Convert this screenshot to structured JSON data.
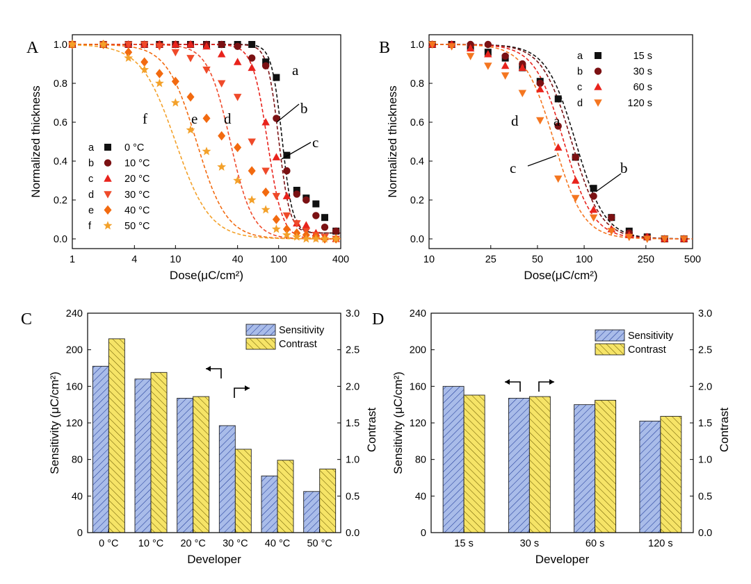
{
  "chart_data": [
    {
      "panel": "A",
      "type": "scatter",
      "xscale": "log",
      "xlim": [
        1,
        400
      ],
      "ylim": [
        -0.05,
        1.05
      ],
      "xticks": [
        "1",
        "4",
        "10",
        "40",
        "100",
        "400"
      ],
      "xtick_values": [
        1,
        4,
        10,
        40,
        100,
        400
      ],
      "yticks": [
        "0.0",
        "0.2",
        "0.4",
        "0.6",
        "0.8",
        "1.0"
      ],
      "xlabel": "Dose(μC/cm²)",
      "ylabel": "Normalized thickness",
      "legend_position": "bottom-left",
      "series": [
        {
          "name": "0 °C",
          "letter": "a",
          "color": "#111111",
          "marker": "square",
          "x": [
            1,
            2,
            3.5,
            5,
            7,
            10,
            14,
            20,
            28,
            40,
            55,
            75,
            95,
            120,
            150,
            185,
            230,
            280,
            360
          ],
          "y": [
            1.0,
            1.0,
            1.0,
            1.0,
            1.0,
            1.0,
            1.0,
            1.0,
            1.0,
            1.0,
            1.0,
            0.91,
            0.83,
            0.43,
            0.25,
            0.21,
            0.18,
            0.11,
            0.04
          ],
          "fit_mid": 108,
          "fit_k": 8.5,
          "fit_floor": 0.03
        },
        {
          "name": "10 °C",
          "letter": "b",
          "color": "#7b1113",
          "marker": "circle",
          "x": [
            1,
            2,
            3.5,
            5,
            7,
            10,
            14,
            20,
            28,
            40,
            55,
            75,
            95,
            120,
            150,
            185,
            230,
            280,
            360
          ],
          "y": [
            1.0,
            1.0,
            1.0,
            1.0,
            1.0,
            1.0,
            1.0,
            1.0,
            1.0,
            0.99,
            0.93,
            0.89,
            0.62,
            0.35,
            0.23,
            0.2,
            0.12,
            0.06,
            0.04
          ],
          "fit_mid": 100,
          "fit_k": 8.0,
          "fit_floor": 0.03
        },
        {
          "name": "20 °C",
          "letter": "c",
          "color": "#e8231c",
          "marker": "triangle-up",
          "x": [
            1,
            2,
            3.5,
            5,
            7,
            10,
            14,
            20,
            28,
            40,
            55,
            75,
            95,
            120,
            150,
            185,
            230,
            280,
            360
          ],
          "y": [
            1.0,
            1.0,
            1.0,
            1.0,
            1.0,
            1.0,
            1.0,
            0.99,
            0.95,
            0.91,
            0.88,
            0.6,
            0.42,
            0.22,
            0.08,
            0.07,
            0.03,
            0.01,
            0.0
          ],
          "fit_mid": 78,
          "fit_k": 6.0,
          "fit_floor": 0.0
        },
        {
          "name": "30 °C",
          "letter": "d",
          "color": "#ef4a2a",
          "marker": "triangle-down",
          "x": [
            1,
            2,
            3.5,
            5,
            7,
            10,
            14,
            20,
            28,
            40,
            55,
            75,
            95,
            120,
            150,
            185,
            230,
            280,
            360
          ],
          "y": [
            1.0,
            1.0,
            1.0,
            1.0,
            0.99,
            0.96,
            0.93,
            0.87,
            0.8,
            0.73,
            0.5,
            0.35,
            0.22,
            0.12,
            0.08,
            0.04,
            0.02,
            0.01,
            0.0
          ],
          "fit_mid": 34,
          "fit_k": 4.0,
          "fit_floor": 0.0
        },
        {
          "name": "40 °C",
          "letter": "e",
          "color": "#f26a10",
          "marker": "diamond",
          "x": [
            1,
            2,
            3.5,
            5,
            7,
            10,
            14,
            20,
            28,
            40,
            55,
            75,
            95,
            120,
            150,
            185,
            230,
            280,
            360
          ],
          "y": [
            1.0,
            1.0,
            0.96,
            0.91,
            0.85,
            0.81,
            0.73,
            0.62,
            0.53,
            0.47,
            0.35,
            0.24,
            0.1,
            0.05,
            0.03,
            0.02,
            0.01,
            0.0,
            0.0
          ],
          "fit_mid": 16,
          "fit_k": 3.0,
          "fit_floor": 0.0
        },
        {
          "name": "50 °C",
          "letter": "f",
          "color": "#f3a12a",
          "marker": "star",
          "x": [
            1,
            2,
            3.5,
            5,
            7,
            10,
            14,
            20,
            28,
            40,
            55,
            75,
            95,
            120,
            150,
            185,
            230,
            280,
            360
          ],
          "y": [
            1.0,
            1.0,
            0.93,
            0.87,
            0.8,
            0.7,
            0.56,
            0.45,
            0.37,
            0.3,
            0.2,
            0.15,
            0.05,
            0.02,
            0.01,
            0.0,
            0.0,
            0.0,
            0.0
          ],
          "fit_mid": 10,
          "fit_k": 2.6,
          "fit_floor": 0.0
        }
      ],
      "annotations": [
        "a",
        "b",
        "c",
        "d",
        "e",
        "f"
      ]
    },
    {
      "panel": "B",
      "type": "scatter",
      "xscale": "log",
      "xlim": [
        10,
        500
      ],
      "ylim": [
        -0.05,
        1.05
      ],
      "xticks": [
        "10",
        "25",
        "50",
        "100",
        "250",
        "500"
      ],
      "xtick_values": [
        10,
        25,
        50,
        100,
        250,
        500
      ],
      "yticks": [
        "0.0",
        "0.2",
        "0.4",
        "0.6",
        "0.8",
        "1.0"
      ],
      "xlabel": "Dose(μC/cm²)",
      "ylabel": "Normalized thickness",
      "legend_position": "top-right",
      "series": [
        {
          "name": "15 s",
          "letter": "a",
          "color": "#111111",
          "marker": "square",
          "x": [
            10.5,
            14,
            18.5,
            24,
            31,
            40,
            52,
            68,
            88,
            115,
            150,
            195,
            255,
            330,
            440
          ],
          "y": [
            1.0,
            1.0,
            0.99,
            0.96,
            0.93,
            0.88,
            0.81,
            0.72,
            0.42,
            0.26,
            0.11,
            0.04,
            0.01,
            0.0,
            0.0
          ],
          "fit_mid": 88,
          "fit_k": 4.6,
          "fit_floor": 0.0
        },
        {
          "name": "30 s",
          "letter": "b",
          "color": "#7b1113",
          "marker": "circle",
          "x": [
            10.5,
            14,
            18.5,
            24,
            31,
            40,
            52,
            68,
            88,
            115,
            150,
            195,
            255,
            330,
            440
          ],
          "y": [
            1.0,
            1.0,
            1.0,
            1.0,
            0.94,
            0.9,
            0.8,
            0.58,
            0.42,
            0.22,
            0.11,
            0.03,
            0.01,
            0.0,
            0.0
          ],
          "fit_mid": 83,
          "fit_k": 4.6,
          "fit_floor": 0.0
        },
        {
          "name": "60 s",
          "letter": "c",
          "color": "#e8231c",
          "marker": "triangle-up",
          "x": [
            10.5,
            14,
            18.5,
            24,
            31,
            40,
            52,
            68,
            88,
            115,
            150,
            195,
            255,
            330,
            440
          ],
          "y": [
            1.0,
            1.0,
            0.98,
            0.95,
            0.89,
            0.88,
            0.77,
            0.47,
            0.3,
            0.15,
            0.05,
            0.02,
            0.01,
            0.0,
            0.0
          ],
          "fit_mid": 74,
          "fit_k": 4.6,
          "fit_floor": 0.0
        },
        {
          "name": "120 s",
          "letter": "d",
          "color": "#f47620",
          "marker": "triangle-down",
          "x": [
            10.5,
            14,
            18.5,
            24,
            31,
            40,
            52,
            68,
            88,
            115,
            150,
            195,
            255,
            330,
            440
          ],
          "y": [
            1.0,
            0.99,
            0.94,
            0.89,
            0.84,
            0.75,
            0.61,
            0.31,
            0.21,
            0.11,
            0.04,
            0.01,
            0.0,
            0.0,
            0.0
          ],
          "fit_mid": 64,
          "fit_k": 4.6,
          "fit_floor": 0.0
        }
      ],
      "annotations": [
        "a",
        "b",
        "c",
        "d"
      ]
    },
    {
      "panel": "C",
      "type": "bar",
      "categories": [
        "0 °C",
        "10 °C",
        "20 °C",
        "30 °C",
        "40 °C",
        "50 °C"
      ],
      "xlabel": "Developer",
      "ylabel": "Sensitivity (μC/cm²)",
      "ylabel_right": "Contrast",
      "ylim": [
        0,
        240
      ],
      "ylim_right": [
        0,
        3.0
      ],
      "yticks": [
        "0",
        "40",
        "80",
        "120",
        "160",
        "200",
        "240"
      ],
      "yticks_right": [
        "0.0",
        "0.5",
        "1.0",
        "1.5",
        "2.0",
        "2.5",
        "3.0"
      ],
      "legend_position": "top-right",
      "series": [
        {
          "name": "Sensitivity",
          "axis": "left",
          "color": "#a9bce9",
          "hatch": "/",
          "values": [
            182,
            168,
            147,
            117,
            62,
            45
          ]
        },
        {
          "name": "Contrast",
          "axis": "right",
          "color": "#f6e467",
          "hatch": "\\",
          "values": [
            2.65,
            2.19,
            1.86,
            1.14,
            0.99,
            0.87
          ]
        }
      ]
    },
    {
      "panel": "D",
      "type": "bar",
      "categories": [
        "15 s",
        "30 s",
        "60 s",
        "120 s"
      ],
      "xlabel": "Developer",
      "ylabel": "Sensitivity (μC/cm²)",
      "ylabel_right": "Contrast",
      "ylim": [
        0,
        240
      ],
      "ylim_right": [
        0,
        3.0
      ],
      "yticks": [
        "0",
        "40",
        "80",
        "120",
        "160",
        "200",
        "240"
      ],
      "yticks_right": [
        "0.0",
        "0.5",
        "1.0",
        "1.5",
        "2.0",
        "2.5",
        "3.0"
      ],
      "legend_position": "top-right",
      "series": [
        {
          "name": "Sensitivity",
          "axis": "left",
          "color": "#a9bce9",
          "hatch": "/",
          "values": [
            160,
            147,
            140,
            122
          ]
        },
        {
          "name": "Contrast",
          "axis": "right",
          "color": "#f6e467",
          "hatch": "\\",
          "values": [
            1.88,
            1.86,
            1.81,
            1.59
          ]
        }
      ]
    }
  ]
}
